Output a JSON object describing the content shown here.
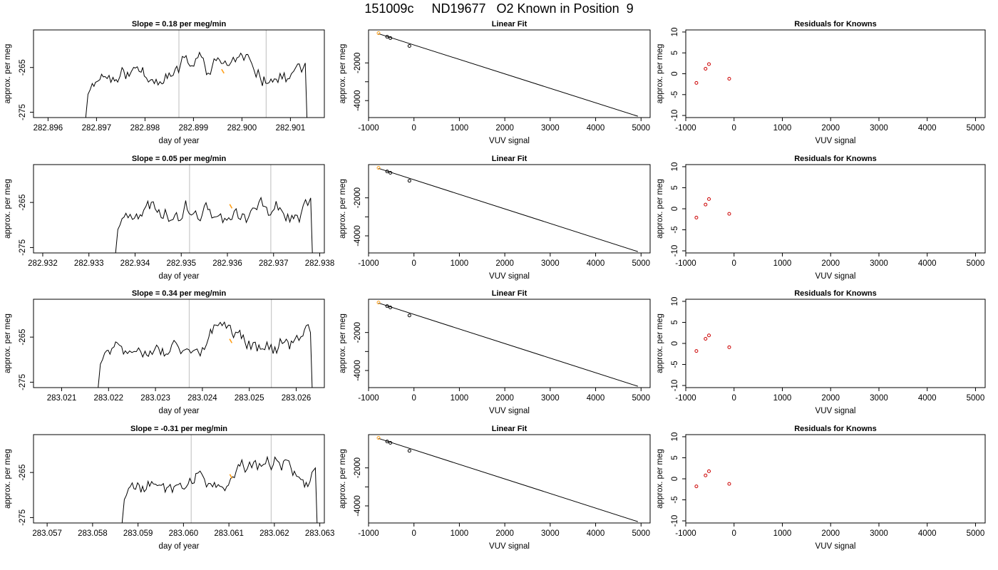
{
  "figure": {
    "title": "151009c     ND19677   O2 Known in Position  9"
  },
  "colors": {
    "trace": "#000000",
    "highlight": "#ff9f1a",
    "residual": "#cc0000",
    "vline": "#c8c8c8",
    "frame": "#000000"
  },
  "chart_data": [
    {
      "id": "r1-trace",
      "type": "line",
      "title": "Slope =  0.18  per meg/min",
      "xlabel": "day of year",
      "ylabel": "approx. per meg",
      "xlim": [
        282.8957,
        282.9017
      ],
      "ylim": [
        -276.2,
        -256.6
      ],
      "xticks": [
        282.896,
        282.897,
        282.898,
        282.899,
        282.9,
        282.901
      ],
      "xtick_labels": [
        "282.896",
        "282.897",
        "282.898",
        "282.899",
        "282.900",
        "282.901"
      ],
      "yticks": [
        -275,
        -265
      ],
      "ytick_labels": [
        "-275",
        "-265"
      ],
      "vlines": [
        282.8987,
        282.9005
      ],
      "start": 282.89675,
      "end": 282.90135,
      "highlight_x": [
        282.89958,
        282.89963
      ],
      "seed": 11
    },
    {
      "id": "r1-fit",
      "type": "scatter",
      "title": "Linear Fit",
      "xlabel": "VUV signal",
      "ylabel": "approx. per meg",
      "xlim": [
        -1000,
        5200
      ],
      "ylim": [
        -4900,
        -250
      ],
      "xticks": [
        -1000,
        0,
        1000,
        2000,
        3000,
        4000,
        5000
      ],
      "xtick_labels": [
        "-1000",
        "0",
        "1000",
        "2000",
        "3000",
        "4000",
        "5000"
      ],
      "yticks": [
        -4000,
        -3000,
        -2000
      ],
      "ytick_labels": [
        "-4000",
        "",
        "-2000"
      ],
      "x": [
        -780,
        -590,
        -520,
        -100
      ],
      "y": [
        -422,
        -612,
        -682,
        -1102
      ],
      "fit_line": [
        [
          -780,
          -450
        ],
        [
          4930,
          -4830
        ]
      ],
      "highlight_index": 0
    },
    {
      "id": "r1-resid",
      "type": "scatter",
      "title": "Residuals for Knowns",
      "xlabel": "VUV signal",
      "ylabel": "approx. per meg",
      "xlim": [
        -1000,
        5200
      ],
      "ylim": [
        -10.5,
        10.5
      ],
      "xticks": [
        -1000,
        0,
        1000,
        2000,
        3000,
        4000,
        5000
      ],
      "xtick_labels": [
        "-1000",
        "0",
        "1000",
        "2000",
        "3000",
        "4000",
        "5000"
      ],
      "yticks": [
        -10,
        -5,
        0,
        5,
        10
      ],
      "ytick_labels": [
        "-10",
        "-5",
        "0",
        "5",
        "10"
      ],
      "x": [
        -780,
        -590,
        -520,
        -100
      ],
      "y": [
        -2.2,
        1.2,
        2.3,
        -1.2
      ]
    },
    {
      "id": "r2-trace",
      "type": "line",
      "title": "Slope =  0.05  per meg/min",
      "xlabel": "day of year",
      "ylabel": "approx. per meg",
      "xlim": [
        282.9318,
        282.9381
      ],
      "ylim": [
        -276.2,
        -256.6
      ],
      "xticks": [
        282.932,
        282.933,
        282.934,
        282.935,
        282.936,
        282.937,
        282.938
      ],
      "xtick_labels": [
        "282.932",
        "282.933",
        "282.934",
        "282.935",
        "282.936",
        "282.937",
        "282.938"
      ],
      "yticks": [
        -275,
        -265
      ],
      "ytick_labels": [
        "-275",
        "-265"
      ],
      "vlines": [
        282.93518,
        282.93694
      ],
      "start": 282.93355,
      "end": 282.93785,
      "highlight_x": [
        282.93605,
        282.9361
      ],
      "seed": 23
    },
    {
      "id": "r2-fit",
      "type": "scatter",
      "title": "Linear Fit",
      "xlabel": "VUV signal",
      "ylabel": "approx. per meg",
      "xlim": [
        -1000,
        5200
      ],
      "ylim": [
        -4900,
        -250
      ],
      "xticks": [
        -1000,
        0,
        1000,
        2000,
        3000,
        4000,
        5000
      ],
      "xtick_labels": [
        "-1000",
        "0",
        "1000",
        "2000",
        "3000",
        "4000",
        "5000"
      ],
      "yticks": [
        -4000,
        -3000,
        -2000
      ],
      "ytick_labels": [
        "-4000",
        "",
        "-2000"
      ],
      "x": [
        -780,
        -590,
        -520,
        -100
      ],
      "y": [
        -422,
        -612,
        -682,
        -1102
      ],
      "fit_line": [
        [
          -780,
          -450
        ],
        [
          4930,
          -4830
        ]
      ],
      "highlight_index": 0
    },
    {
      "id": "r2-resid",
      "type": "scatter",
      "title": "Residuals for Knowns",
      "xlabel": "VUV signal",
      "ylabel": "approx. per meg",
      "xlim": [
        -1000,
        5200
      ],
      "ylim": [
        -10.5,
        10.5
      ],
      "xticks": [
        -1000,
        0,
        1000,
        2000,
        3000,
        4000,
        5000
      ],
      "xtick_labels": [
        "-1000",
        "0",
        "1000",
        "2000",
        "3000",
        "4000",
        "5000"
      ],
      "yticks": [
        -10,
        -5,
        0,
        5,
        10
      ],
      "ytick_labels": [
        "-10",
        "-5",
        "0",
        "5",
        "10"
      ],
      "x": [
        -780,
        -590,
        -520,
        -100
      ],
      "y": [
        -2.1,
        1.0,
        2.3,
        -1.2
      ]
    },
    {
      "id": "r3-trace",
      "type": "line",
      "title": "Slope =  0.34  per meg/min",
      "xlabel": "day of year",
      "ylabel": "approx. per meg",
      "xlim": [
        283.0204,
        283.0266
      ],
      "ylim": [
        -276.2,
        -256.6
      ],
      "xticks": [
        283.021,
        283.022,
        283.023,
        283.024,
        283.025,
        283.026
      ],
      "xtick_labels": [
        "283.021",
        "283.022",
        "283.023",
        "283.024",
        "283.025",
        "283.026"
      ],
      "yticks": [
        -275,
        -265
      ],
      "ytick_labels": [
        "-275",
        "-265"
      ],
      "vlines": [
        283.02372,
        283.02547
      ],
      "start": 283.02175,
      "end": 283.02635,
      "highlight_x": [
        283.02458,
        283.02463
      ],
      "seed": 37
    },
    {
      "id": "r3-fit",
      "type": "scatter",
      "title": "Linear Fit",
      "xlabel": "VUV signal",
      "ylabel": "approx. per meg",
      "xlim": [
        -1000,
        5200
      ],
      "ylim": [
        -4900,
        -250
      ],
      "xticks": [
        -1000,
        0,
        1000,
        2000,
        3000,
        4000,
        5000
      ],
      "xtick_labels": [
        "-1000",
        "0",
        "1000",
        "2000",
        "3000",
        "4000",
        "5000"
      ],
      "yticks": [
        -4000,
        -3000,
        -2000
      ],
      "ytick_labels": [
        "-4000",
        "",
        "-2000"
      ],
      "x": [
        -780,
        -590,
        -520,
        -100
      ],
      "y": [
        -422,
        -612,
        -682,
        -1102
      ],
      "fit_line": [
        [
          -780,
          -450
        ],
        [
          4930,
          -4830
        ]
      ],
      "highlight_index": 0
    },
    {
      "id": "r3-resid",
      "type": "scatter",
      "title": "Residuals for Knowns",
      "xlabel": "VUV signal",
      "ylabel": "approx. per meg",
      "xlim": [
        -1000,
        5200
      ],
      "ylim": [
        -10.5,
        10.5
      ],
      "xticks": [
        -1000,
        0,
        1000,
        2000,
        3000,
        4000,
        5000
      ],
      "xtick_labels": [
        "-1000",
        "0",
        "1000",
        "2000",
        "3000",
        "4000",
        "5000"
      ],
      "yticks": [
        -10,
        -5,
        0,
        5,
        10
      ],
      "ytick_labels": [
        "-10",
        "-5",
        "0",
        "5",
        "10"
      ],
      "x": [
        -780,
        -590,
        -520,
        -100
      ],
      "y": [
        -1.8,
        1.1,
        1.9,
        -0.9
      ]
    },
    {
      "id": "r4-trace",
      "type": "line",
      "title": "Slope =  -0.31  per meg/min",
      "xlabel": "day of year",
      "ylabel": "approx. per meg",
      "xlim": [
        283.0567,
        283.0631
      ],
      "ylim": [
        -276.2,
        -256.6
      ],
      "xticks": [
        283.057,
        283.058,
        283.059,
        283.06,
        283.061,
        283.062,
        283.063
      ],
      "xtick_labels": [
        "283.057",
        "283.058",
        "283.059",
        "283.060",
        "283.061",
        "283.062",
        "283.063"
      ],
      "yticks": [
        -275,
        -265
      ],
      "ytick_labels": [
        "-275",
        "-265"
      ],
      "vlines": [
        283.06017,
        283.06193
      ],
      "start": 283.05862,
      "end": 283.06295,
      "highlight_x": [
        283.06102,
        283.06107
      ],
      "seed": 53
    },
    {
      "id": "r4-fit",
      "type": "scatter",
      "title": "Linear Fit",
      "xlabel": "VUV signal",
      "ylabel": "approx. per meg",
      "xlim": [
        -1000,
        5200
      ],
      "ylim": [
        -4900,
        -250
      ],
      "xticks": [
        -1000,
        0,
        1000,
        2000,
        3000,
        4000,
        5000
      ],
      "xtick_labels": [
        "-1000",
        "0",
        "1000",
        "2000",
        "3000",
        "4000",
        "5000"
      ],
      "yticks": [
        -4000,
        -3000,
        -2000
      ],
      "ytick_labels": [
        "-4000",
        "",
        "-2000"
      ],
      "x": [
        -780,
        -590,
        -520,
        -100
      ],
      "y": [
        -422,
        -612,
        -682,
        -1102
      ],
      "fit_line": [
        [
          -780,
          -450
        ],
        [
          4930,
          -4830
        ]
      ],
      "highlight_index": 0
    },
    {
      "id": "r4-resid",
      "type": "scatter",
      "title": "Residuals for Knowns",
      "xlabel": "VUV signal",
      "ylabel": "approx. per meg",
      "xlim": [
        -1000,
        5200
      ],
      "ylim": [
        -10.5,
        10.5
      ],
      "xticks": [
        -1000,
        0,
        1000,
        2000,
        3000,
        4000,
        5000
      ],
      "xtick_labels": [
        "-1000",
        "0",
        "1000",
        "2000",
        "3000",
        "4000",
        "5000"
      ],
      "yticks": [
        -10,
        -5,
        0,
        5,
        10
      ],
      "ytick_labels": [
        "-10",
        "-5",
        "0",
        "5",
        "10"
      ],
      "x": [
        -780,
        -590,
        -520,
        -100
      ],
      "y": [
        -1.8,
        0.8,
        1.8,
        -1.2
      ]
    }
  ]
}
